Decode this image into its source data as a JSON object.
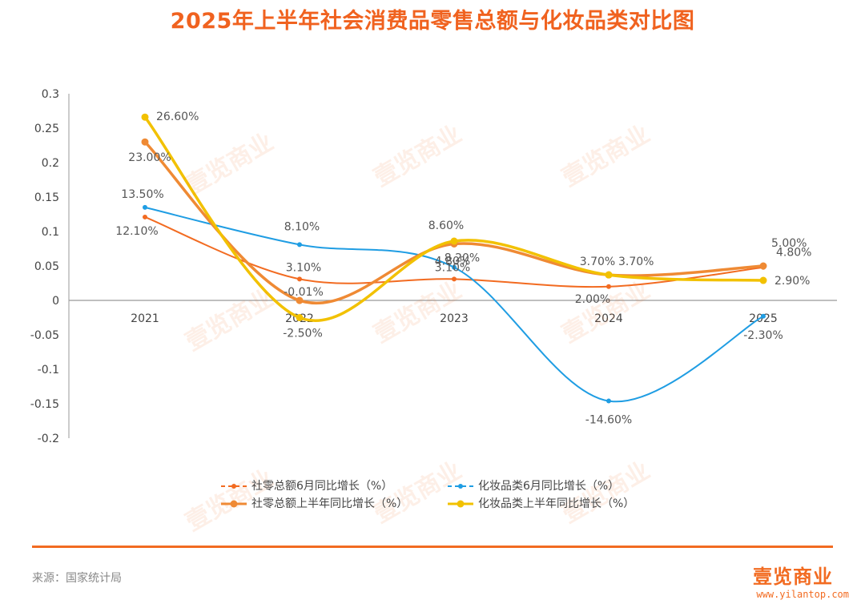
{
  "title": "2025年上半年社会消费品零售总额与化妆品类对比图",
  "source": "来源：国家统计局",
  "brand": {
    "name": "壹览商业",
    "url": "www.yilantop.com",
    "watermark": "壹览商业"
  },
  "colors": {
    "title": "#f0621f",
    "orange_dark": "#f26b21",
    "orange_mid": "#ef8a34",
    "blue": "#1f9de3",
    "yellow": "#f2c100",
    "axis": "#999999"
  },
  "chart_data": {
    "type": "line",
    "title": "2025年上半年社会消费品零售总额与化妆品类对比图",
    "categories": [
      "2021",
      "2022",
      "2023",
      "2024",
      "2025"
    ],
    "ylim": [
      -0.2,
      0.3
    ],
    "yticks": [
      "0.3",
      "0.25",
      "0.2",
      "0.15",
      "0.1",
      "0.05",
      "0",
      "-0.05",
      "-0.1",
      "-0.15",
      "-0.2"
    ],
    "ytick_values": [
      0.3,
      0.25,
      0.2,
      0.15,
      0.1,
      0.05,
      0,
      -0.05,
      -0.1,
      -0.15,
      -0.2
    ],
    "legend_position": "bottom",
    "series": [
      {
        "name": "社零总额6月同比增长（%）",
        "color": "#f26b21",
        "dashed": true,
        "marker": "small",
        "values": [
          0.121,
          0.031,
          0.031,
          0.02,
          0.048
        ],
        "labels": [
          "12.10%",
          "3.10%",
          "3.10%",
          "2.00%",
          "4.80%"
        ]
      },
      {
        "name": "化妆品类6月同比增长（%）",
        "color": "#1f9de3",
        "dashed": true,
        "marker": "small",
        "values": [
          0.135,
          0.081,
          0.048,
          -0.146,
          -0.023
        ],
        "labels": [
          "13.50%",
          "8.10%",
          "4.80%",
          "-14.60%",
          "-2.30%"
        ]
      },
      {
        "name": "社零总额上半年同比增长（%）",
        "color": "#ef8a34",
        "dashed": false,
        "marker": "large",
        "values": [
          0.23,
          -0.0001,
          0.082,
          0.037,
          0.05
        ],
        "labels": [
          "23.00%",
          "-0.01%",
          "8.20%",
          "3.70%",
          "5.00%"
        ]
      },
      {
        "name": "化妆品类上半年同比增长（%）",
        "color": "#f2c100",
        "dashed": false,
        "marker": "large",
        "values": [
          0.266,
          -0.025,
          0.086,
          0.037,
          0.029
        ],
        "labels": [
          "26.60%",
          "-2.50%",
          "8.60%",
          "3.70%",
          "2.90%"
        ]
      }
    ]
  }
}
